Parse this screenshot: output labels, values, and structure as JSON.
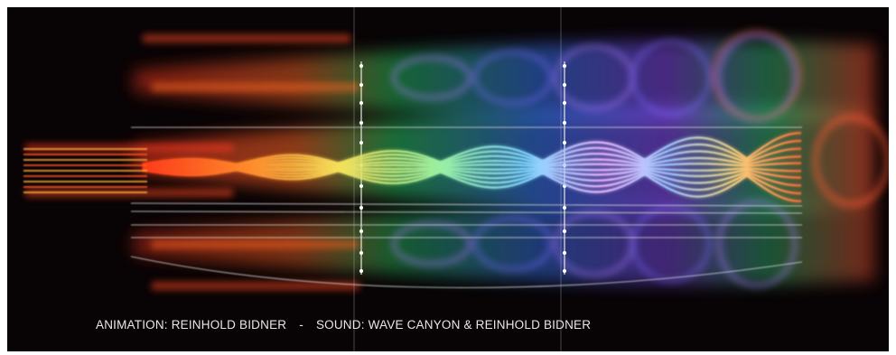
{
  "credits": {
    "animation": "ANIMATION: REINHOLD BIDNER",
    "separator": "-",
    "sound": "SOUND: WAVE CANYON & REINHOLD BIDNER"
  },
  "palette": {
    "background": "#080305",
    "warm_stream": "#ff5a1e",
    "yellow_stream": "#f2e65a",
    "cyan_stream": "#6fe0ff",
    "violet_stream": "#8a5cff",
    "pink_stream": "#ffb0ff",
    "green_haze": "#2fd26a",
    "credit_text": "#e9e6e6"
  }
}
